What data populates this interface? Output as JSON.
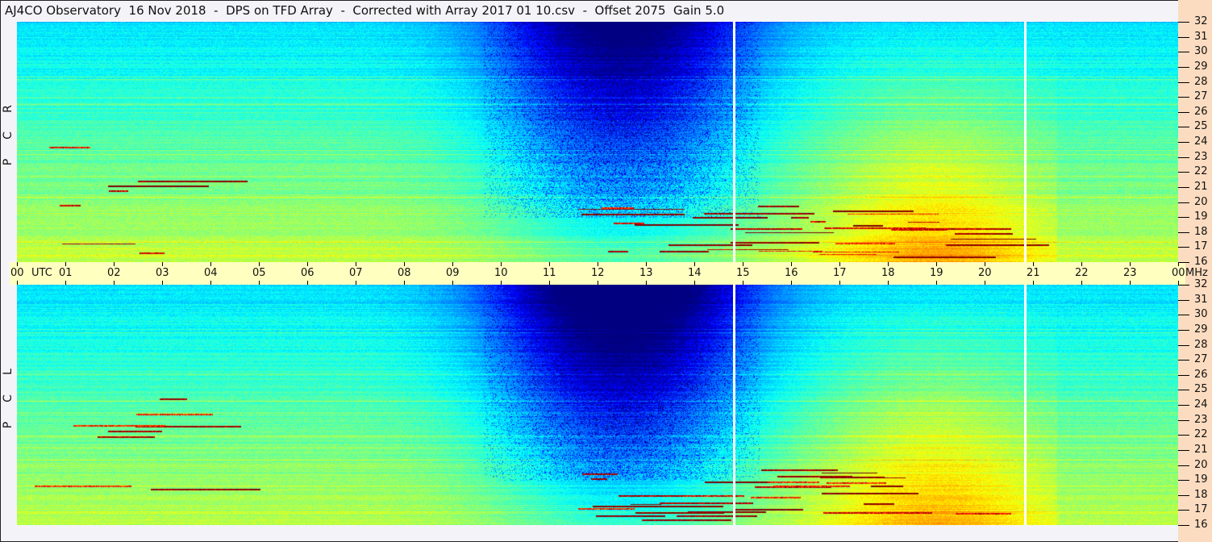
{
  "title": "AJ4CO Observatory  16 Nov 2018  -  DPS on TFD Array  -  Corrected with Array 2017 01 10.csv  -  Offset 2075  Gain 5.0",
  "chart_data": {
    "type": "heatmap",
    "title": "AJ4CO Observatory  16 Nov 2018  -  DPS on TFD Array  -  Corrected with Array 2017 01 10.csv  -  Offset 2075  Gain 5.0",
    "colormap": "jet",
    "panels": [
      {
        "name": "R C P",
        "letters": [
          "R",
          "C",
          "P"
        ]
      },
      {
        "name": "L C P",
        "letters": [
          "L",
          "C",
          "P"
        ]
      }
    ],
    "xlabel": "UTC",
    "x_ticks": [
      "00",
      "01",
      "02",
      "03",
      "04",
      "05",
      "06",
      "07",
      "08",
      "09",
      "10",
      "11",
      "12",
      "13",
      "14",
      "15",
      "16",
      "17",
      "18",
      "19",
      "20",
      "21",
      "22",
      "23",
      "00"
    ],
    "xlim_utc_hours": [
      0,
      24
    ],
    "yunit": "MHz",
    "y_ticks": [
      32,
      31,
      30,
      29,
      28,
      27,
      26,
      25,
      24,
      23,
      22,
      21,
      20,
      19,
      18,
      17,
      16
    ],
    "ylim_mhz": [
      16,
      32
    ],
    "data_gaps_utc_hours": [
      14.8,
      20.82
    ]
  },
  "colors": {
    "background": "#f4f4f8",
    "time_bar": "#ffffc0",
    "freq_axis": "#fcdcc0"
  }
}
